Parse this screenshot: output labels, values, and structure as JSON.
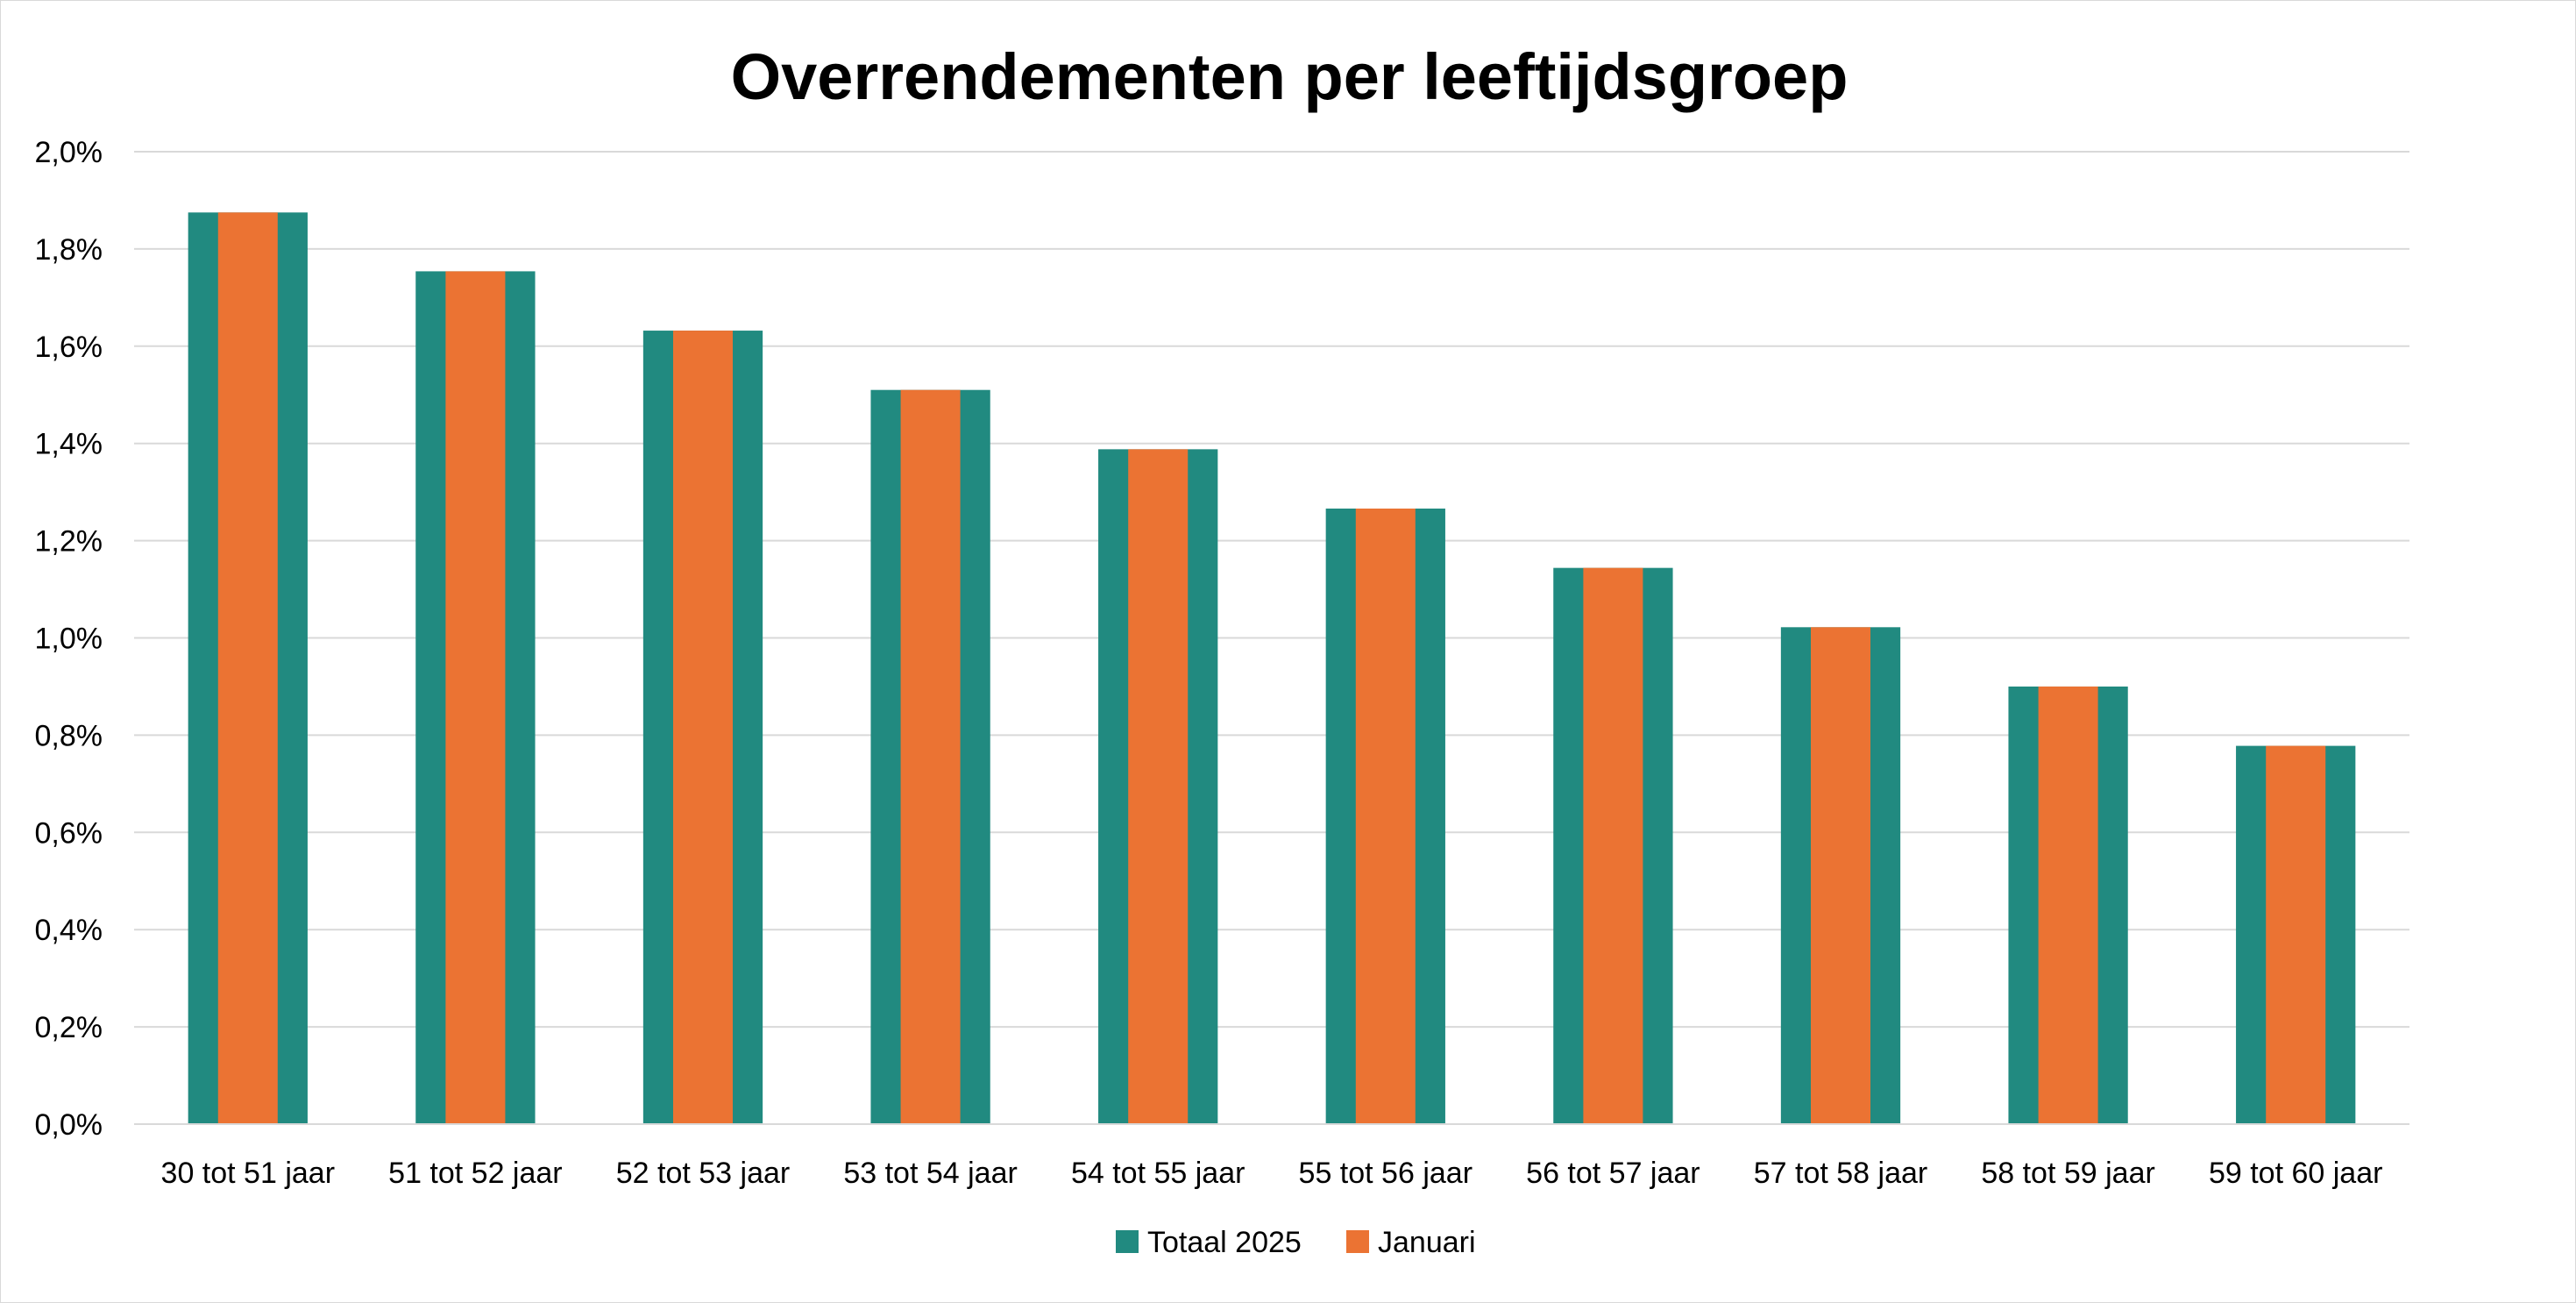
{
  "chart_data": {
    "type": "bar",
    "title": "Overrendementen per leeftijdsgroep",
    "xlabel": "",
    "ylabel": "",
    "categories": [
      "30 tot 51 jaar",
      "51 tot 52 jaar",
      "52 tot 53 jaar",
      "53 tot 54 jaar",
      "54 tot 55 jaar",
      "55 tot 56 jaar",
      "56 tot 57 jaar",
      "57 tot 58 jaar",
      "58 tot 59 jaar",
      "59 tot 60 jaar"
    ],
    "series": [
      {
        "name": "Totaal 2025",
        "color": "#218a80",
        "values": [
          1.875,
          1.754,
          1.632,
          1.51,
          1.388,
          1.266,
          1.144,
          1.022,
          0.9,
          0.778
        ]
      },
      {
        "name": "Januari",
        "color": "#eb7333",
        "values": [
          1.875,
          1.754,
          1.632,
          1.51,
          1.388,
          1.266,
          1.144,
          1.022,
          0.9,
          0.778
        ]
      }
    ],
    "ylim": [
      0,
      2.0
    ],
    "yticks": [
      "0,0%",
      "0,2%",
      "0,4%",
      "0,6%",
      "0,8%",
      "1,0%",
      "1,2%",
      "1,4%",
      "1,6%",
      "1,8%",
      "2,0%"
    ],
    "grid": true,
    "legend": "bottom-center",
    "gridline_color": "#d9d9d9"
  }
}
